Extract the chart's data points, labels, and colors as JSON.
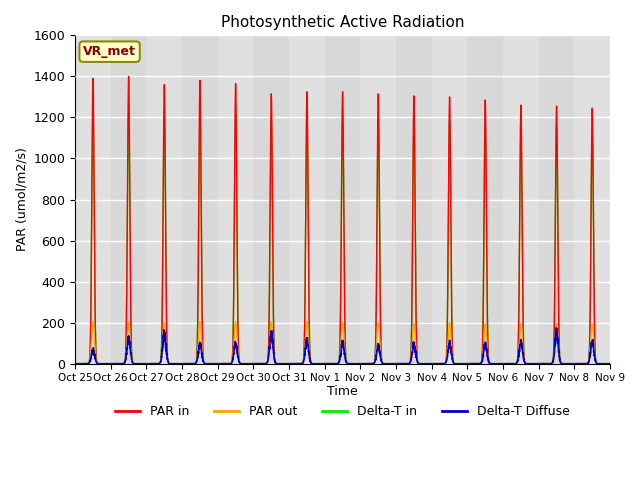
{
  "title": "Photosynthetic Active Radiation",
  "ylabel": "PAR (umol/m2/s)",
  "xlabel": "Time",
  "annotation": "VR_met",
  "ylim": [
    0,
    1600
  ],
  "background_color": "#e8e8e8",
  "tick_labels": [
    "Oct 25",
    "Oct 26",
    "Oct 27",
    "Oct 28",
    "Oct 29",
    "Oct 30",
    "Oct 31",
    "Nov 1",
    "Nov 2",
    "Nov 3",
    "Nov 4",
    "Nov 5",
    "Nov 6",
    "Nov 7",
    "Nov 8",
    "Nov 9"
  ],
  "num_days": 15,
  "day_peaks_PAR_in": [
    1390,
    1400,
    1360,
    1380,
    1365,
    1315,
    1325,
    1325,
    1315,
    1305,
    1300,
    1285,
    1260,
    1255,
    1245
  ],
  "day_peaks_PAR_out": [
    205,
    205,
    200,
    205,
    205,
    205,
    205,
    200,
    200,
    195,
    200,
    195,
    195,
    195,
    195
  ],
  "day_peaks_DeltaT_in": [
    1250,
    1230,
    1190,
    1215,
    1215,
    1185,
    1195,
    1185,
    1185,
    1175,
    1165,
    1155,
    1145,
    1150,
    1145
  ],
  "day_peaks_DeltaT_diff": [
    80,
    145,
    170,
    110,
    115,
    180,
    130,
    115,
    100,
    115,
    115,
    110,
    120,
    180,
    125
  ],
  "colors": {
    "PAR_in": "#ff0000",
    "PAR_out": "#ffa500",
    "DeltaT_in": "#00ee00",
    "DeltaT_diff": "#0000cc"
  },
  "legend": [
    "PAR in",
    "PAR out",
    "Delta-T in",
    "Delta-T Diffuse"
  ],
  "band_colors": [
    "#e0e0e0",
    "#d8d8d8"
  ]
}
